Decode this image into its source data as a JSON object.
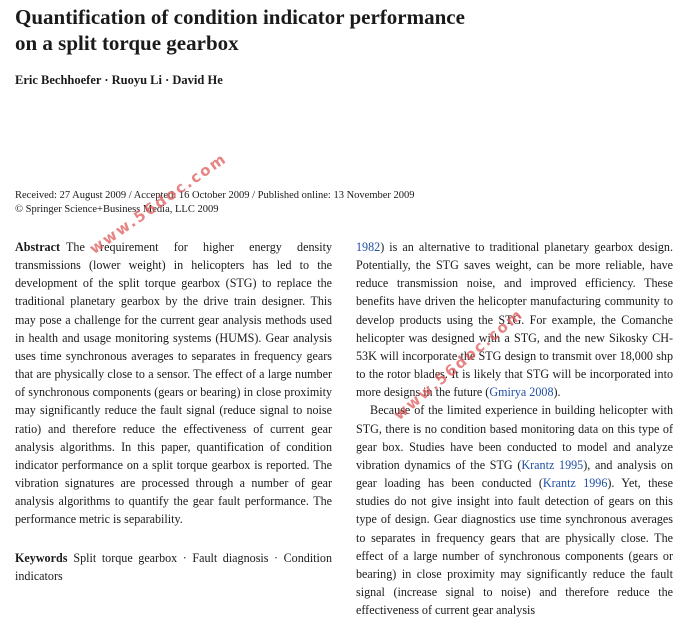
{
  "title_lines": [
    "Quantification of condition indicator performance",
    "on a split torque gearbox"
  ],
  "authors": "Eric Bechhoefer · Ruoyu Li · David He",
  "dates": {
    "line1": "Received: 27 August 2009 / Accepted: 16 October 2009 / Published online: 13 November 2009",
    "line2": "© Springer Science+Business Media, LLC 2009"
  },
  "abstract": {
    "label": "Abstract",
    "text": "The requirement for higher energy density transmissions (lower weight) in helicopters has led to the development of the split torque gearbox (STG) to replace the traditional planetary gearbox by the drive train designer. This may pose a challenge for the current gear analysis methods used in health and usage monitoring systems (HUMS). Gear analysis uses time synchronous averages to separates in frequency gears that are physically close to a sensor. The effect of a large number of synchronous components (gears or bearing) in close proximity may significantly reduce the fault signal (reduce signal to noise ratio) and therefore reduce the effectiveness of current gear analysis algorithms. In this paper, quantification of condition indicator performance on a split torque gearbox is reported. The vibration signatures are processed through a number of gear analysis algorithms to quantify the gear fault performance. The performance metric is separability."
  },
  "keywords": {
    "label": "Keywords",
    "text": "Split torque gearbox · Fault diagnosis · Condition indicators"
  },
  "right_col": {
    "p1_cite1": "1982",
    "p1_a": ") is an alternative to traditional planetary gearbox design. Potentially, the STG saves weight, can be more reliable, have reduce transmission noise, and improved efficiency. These benefits have driven the helicopter manufacturing community to develop products using the STG. For example, the Comanche helicopter was designed with a STG, and the new Sikosky CH-53K will incorporate the STG design to transmit over 18,000 shp to the rotor blades. It is likely that STG will be incorporated into more designs in the future (",
    "p1_cite2": "Gmirya 2008",
    "p1_b": ").",
    "p2_a": "Because of the limited experience in building helicopter with STG, there is no condition based monitoring data on this type of gear box. Studies have been conducted to model and analyze vibration dynamics of the STG (",
    "p2_cite1": "Krantz 1995",
    "p2_b": "), and analysis on gear loading has been conducted (",
    "p2_cite2": "Krantz 1996",
    "p2_c": "). Yet, these studies do not give insight into fault detection of gears on this type of design. Gear diagnostics use time synchronous averages to separates in frequency gears that are physically close. The effect of a large number of synchronous components (gears or bearing) in close proximity may significantly reduce the fault signal (increase signal to noise) and therefore reduce the effectiveness of current gear analysis"
  },
  "watermark": "www.56doc.com",
  "colors": {
    "citation": "#1f4fa3",
    "watermark": "#e05a5a"
  }
}
